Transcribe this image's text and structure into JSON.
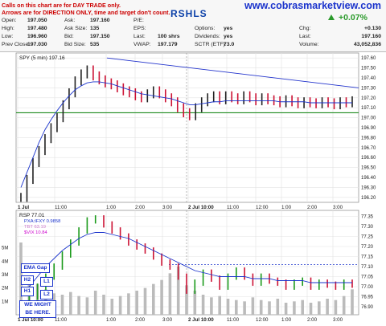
{
  "header": {
    "note_line1": "Calls on this chart are for DAY TRADE only.",
    "note_line2": "Arrows are for DIRECTION ONLY, time and target don't count.",
    "ticker": "RSHLS",
    "website": "www.cobrasmarketview.com",
    "change_pct": "+0.07%"
  },
  "quote": {
    "open_label": "Open:",
    "open_value": "197.050",
    "high_label": "High:",
    "high_value": "197.480",
    "low_label": "Low:",
    "low_value": "196.960",
    "prev_label": "Prev Close:",
    "prev_value": "197.030",
    "ask_label": "Ask:",
    "ask_value": "197.160",
    "asksize_label": "Ask Size:",
    "asksize_value": "135",
    "bid_label": "Bid:",
    "bid_value": "197.150",
    "bidsize_label": "Bid Size:",
    "bidsize_value": "535",
    "pe_label": "P/E:",
    "pe_value": "",
    "eps_label": "EPS:",
    "eps_value": "",
    "last_label": "Last:",
    "last_value": "100 shrs",
    "vwap_label": "VWAP:",
    "vwap_value": "197.179",
    "options_label": "Options:",
    "options_value": "yes",
    "dividends_label": "Dividends:",
    "dividends_value": "yes",
    "sctr_label": "SCTR (ETF):",
    "sctr_value": "73.0",
    "chg_label": "Chg:",
    "chg_value": "+0.130",
    "last2_label": "Last:",
    "last2_value": "197.160",
    "volume_label": "Volume:",
    "volume_value": "43,052,836"
  },
  "chart_data": [
    {
      "type": "bar",
      "label": "SPY (5 min) 197.16",
      "y_ticks": [
        "197.60",
        "197.50",
        "197.40",
        "197.30",
        "197.20",
        "197.10",
        "197.00",
        "196.90",
        "196.80",
        "196.70",
        "196.60",
        "196.50",
        "196.40",
        "196.30",
        "196.20"
      ],
      "ylim": [
        196.15,
        197.65
      ],
      "x_ticks": [
        "1 Jul",
        "11:00",
        "1:00",
        "2:00",
        "3:00",
        "2 Jul 10:00",
        "11:00",
        "12:00",
        "1:00",
        "2:00",
        "3:00"
      ],
      "series": [
        {
          "name": "price",
          "values": [
            196.2,
            196.38,
            196.55,
            196.67,
            196.79,
            196.9,
            197.0,
            197.13,
            197.25,
            197.37,
            197.44,
            197.48,
            197.42,
            197.38,
            197.35,
            197.33,
            197.3,
            197.27,
            197.25,
            197.22,
            197.2,
            197.24,
            197.27,
            197.24,
            197.2,
            197.16,
            197.1,
            197.05,
            197.02,
            197.1,
            197.16,
            197.2,
            197.22,
            197.18,
            197.22,
            197.2,
            197.18,
            197.22,
            197.2,
            197.17,
            197.2,
            197.18,
            197.17,
            197.15,
            197.18,
            197.16,
            197.14,
            197.16,
            197.15,
            197.14,
            197.16,
            197.15,
            197.13,
            197.16,
            197.15,
            197.17
          ]
        },
        {
          "name": "ma",
          "values": [
            196.3,
            196.45,
            196.6,
            196.75,
            196.88,
            196.98,
            197.07,
            197.15,
            197.22,
            197.28,
            197.32,
            197.35,
            197.36,
            197.36,
            197.35,
            197.34,
            197.32,
            197.3,
            197.28,
            197.26,
            197.24,
            197.23,
            197.22,
            197.21,
            197.2,
            197.19,
            197.17,
            197.15,
            197.13,
            197.13,
            197.14,
            197.15,
            197.16,
            197.16,
            197.17,
            197.17,
            197.17,
            197.17,
            197.17,
            197.17,
            197.17,
            197.17,
            197.17,
            197.16,
            197.16,
            197.16,
            197.16,
            197.16,
            197.15,
            197.15,
            197.15,
            197.15,
            197.15,
            197.15,
            197.15,
            197.15
          ]
        }
      ],
      "trendline": [
        [
          0.265,
          197.6
        ],
        [
          1.0,
          197.3
        ]
      ],
      "support": 197.05,
      "grid": true
    },
    {
      "type": "line",
      "label": "RSP 77.01",
      "legend": [
        "PXA:IFXY 0.9858",
        "TBT 63.19",
        "$VIX 10.84"
      ],
      "legend_colors": [
        "#1a33cc",
        "#cc77cc",
        "#cc00cc"
      ],
      "y_ticks": [
        "77.35",
        "77.30",
        "77.25",
        "77.20",
        "77.15",
        "77.10",
        "77.05",
        "77.00",
        "76.95",
        "76.90"
      ],
      "ylim": [
        76.86,
        77.38
      ],
      "volume_ticks": [
        "5M",
        "4M",
        "3M",
        "2M",
        "1M"
      ],
      "x_ticks": [
        "1 Jul 10:00",
        "11:00",
        "1:00",
        "2:00",
        "3:00",
        "2 Jul 10:00",
        "11:00",
        "12:00",
        "1:00",
        "2:00",
        "3:00"
      ],
      "resistance": 77.11,
      "series": [
        {
          "name": "price",
          "values": [
            76.9,
            76.95,
            77.0,
            77.05,
            77.1,
            77.16,
            77.22,
            77.28,
            77.33,
            77.34,
            77.31,
            77.28,
            77.25,
            77.22,
            77.2,
            77.18,
            77.15,
            77.12,
            77.1,
            77.05,
            76.98,
            77.02,
            77.07,
            77.04,
            77.0,
            77.05,
            77.08,
            77.05,
            77.02,
            77.05,
            77.03,
            77.02,
            77.0,
            77.02,
            77.03,
            77.0,
            77.02,
            77.01,
            77.0,
            77.02,
            77.01
          ]
        },
        {
          "name": "ma",
          "values": [
            76.95,
            77.0,
            77.05,
            77.1,
            77.14,
            77.18,
            77.21,
            77.24,
            77.26,
            77.27,
            77.27,
            77.26,
            77.25,
            77.24,
            77.22,
            77.2,
            77.18,
            77.16,
            77.14,
            77.12,
            77.1,
            77.08,
            77.07,
            77.06,
            77.05,
            77.05,
            77.05,
            77.05,
            77.04,
            77.04,
            77.04,
            77.03,
            77.03,
            77.03,
            77.03,
            77.02,
            77.02,
            77.02,
            77.02,
            77.02,
            77.02
          ]
        }
      ],
      "volume_values": [
        5.4,
        2.8,
        2.3,
        1.9,
        1.6,
        1.5,
        1.7,
        1.4,
        1.3,
        1.8,
        1.5,
        1.2,
        1.4,
        1.6,
        1.8,
        2.0,
        2.3,
        2.6,
        3.1,
        3.6,
        2.2,
        1.8,
        1.5,
        1.3,
        1.4,
        1.2,
        1.1,
        1.0,
        1.3,
        1.1,
        1.0,
        1.2,
        0.9,
        1.0,
        1.1,
        0.9,
        1.0,
        1.2,
        1.1,
        1.4,
        1.9
      ]
    }
  ],
  "annotations": {
    "ema_gap": "EMA Gap",
    "h2": "H2",
    "l1": "L1",
    "h1": "H1",
    "l2": "L2",
    "we_might_line1": "WE MIGHT",
    "we_might_line2": "BE HERE."
  }
}
